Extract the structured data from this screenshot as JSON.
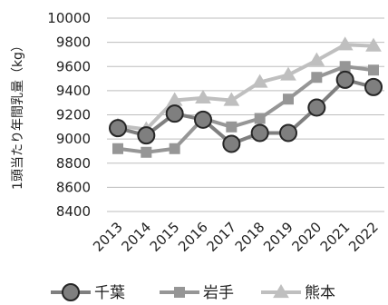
{
  "chart_data": {
    "type": "line",
    "title": "",
    "xlabel": "",
    "ylabel": "1頭当たり年間乳量（kg）",
    "categories": [
      "2013",
      "2014",
      "2015",
      "2016",
      "2017",
      "2018",
      "2019",
      "2020",
      "2021",
      "2022"
    ],
    "ylim": [
      8400,
      10000
    ],
    "yticks": [
      8400,
      8600,
      8800,
      9000,
      9200,
      9400,
      9600,
      9800,
      10000
    ],
    "grid": "horizontal",
    "legend_position": "bottom",
    "series": [
      {
        "name": "千葉",
        "marker": "circle",
        "color": "#7f7f7f",
        "values": [
          9090,
          9030,
          9210,
          9160,
          8960,
          9050,
          9050,
          9260,
          9490,
          9430
        ]
      },
      {
        "name": "岩手",
        "marker": "square",
        "color": "#969696",
        "values": [
          8920,
          8890,
          8920,
          9170,
          9100,
          9170,
          9330,
          9510,
          9600,
          9570
        ]
      },
      {
        "name": "熊本",
        "marker": "triangle",
        "color": "#bfbfbf",
        "values": [
          9110,
          9080,
          9320,
          9340,
          9320,
          9470,
          9530,
          9650,
          9780,
          9770
        ]
      }
    ]
  }
}
